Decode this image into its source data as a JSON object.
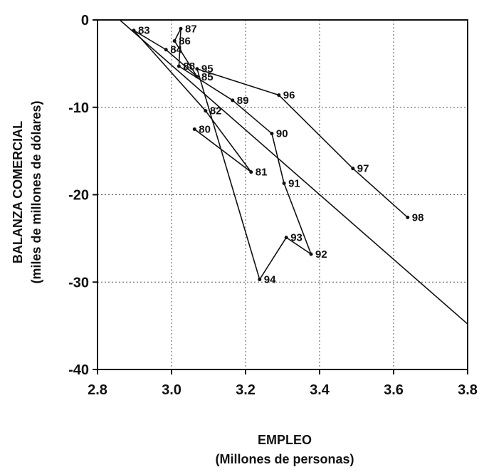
{
  "chart_data": {
    "type": "connected-scatter",
    "x_label": [
      "EMPLEO",
      "(Millones de personas)"
    ],
    "y_label": [
      "BALANZA COMERCIAL",
      "(miles de millones de dólares)"
    ],
    "labels": [
      "80",
      "81",
      "82",
      "83",
      "84",
      "85",
      "86",
      "87",
      "88",
      "89",
      "90",
      "91",
      "92",
      "93",
      "94",
      "95",
      "96",
      "97",
      "98"
    ],
    "x": [
      3.062,
      3.215,
      3.092,
      2.898,
      2.985,
      3.069,
      3.008,
      3.025,
      3.02,
      3.165,
      3.271,
      3.304,
      3.377,
      3.31,
      3.238,
      3.069,
      3.29,
      3.49,
      3.638
    ],
    "y": [
      -12.5,
      -17.4,
      -10.4,
      -1.2,
      -3.4,
      -6.5,
      -2.4,
      -1.0,
      -5.3,
      -9.2,
      -13.0,
      -18.7,
      -26.8,
      -24.9,
      -29.7,
      -5.6,
      -8.6,
      -17.0,
      -22.6
    ],
    "color": "#111111",
    "trend": {
      "x": [
        2.86,
        3.8
      ],
      "y": [
        0,
        -34.8
      ]
    },
    "xlim": [
      2.8,
      3.8
    ],
    "xticks": [
      2.8,
      {
        "value": 3,
        "label": "3.0"
      },
      3.2,
      3.4,
      3.6,
      3.8
    ],
    "ylim": [
      -40,
      0
    ],
    "yticks": [
      0,
      -10,
      -20,
      -30,
      -40
    ],
    "grid": true
  }
}
